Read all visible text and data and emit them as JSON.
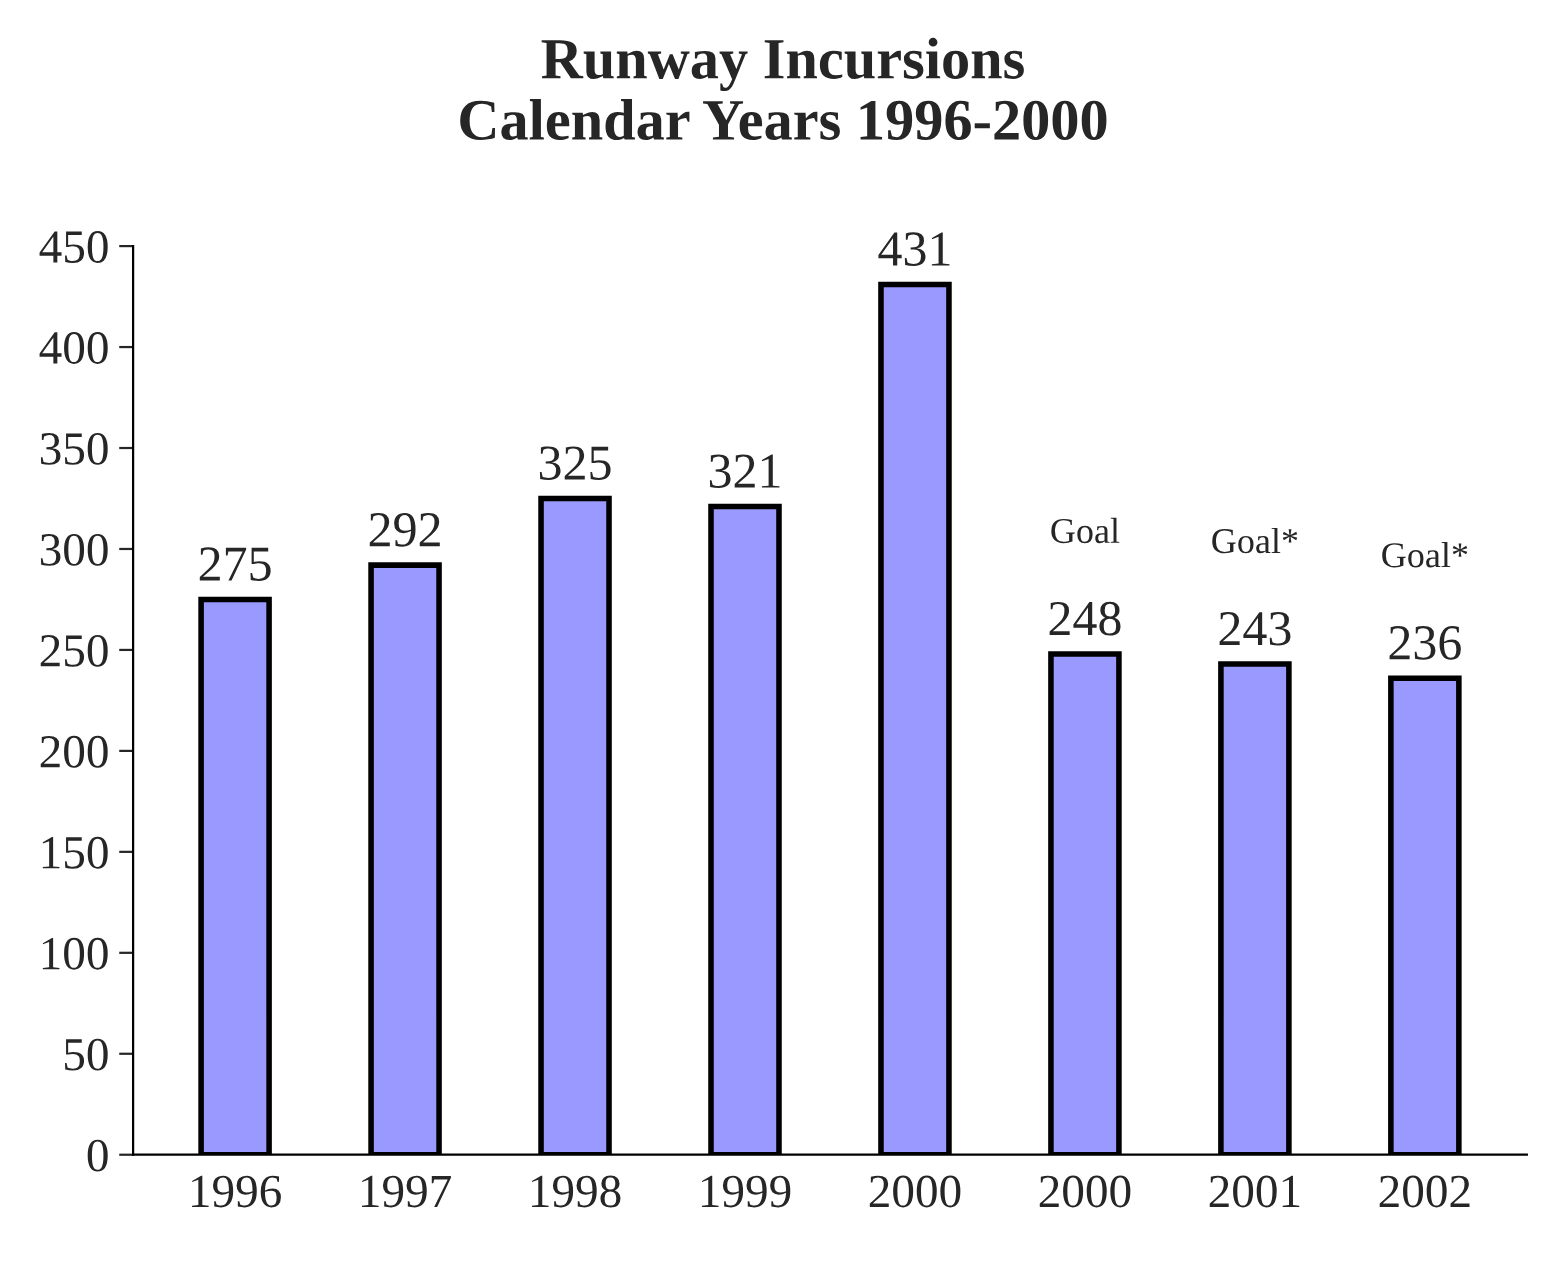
{
  "chart_data": {
    "type": "bar",
    "title": "Runway Incursions\nCalendar Years 1996-2000",
    "categories": [
      "1996",
      "1997",
      "1998",
      "1999",
      "2000",
      "2000",
      "2001",
      "2002"
    ],
    "values": [
      275,
      292,
      325,
      321,
      431,
      248,
      243,
      236
    ],
    "color": "#9999ff",
    "ylim": [
      0,
      450
    ],
    "yticks": [
      0,
      50,
      100,
      150,
      200,
      250,
      300,
      350,
      400,
      450
    ],
    "grid": false,
    "data_labels": true,
    "annotations": [
      "Goal",
      "Goal*",
      "Goal*"
    ]
  }
}
